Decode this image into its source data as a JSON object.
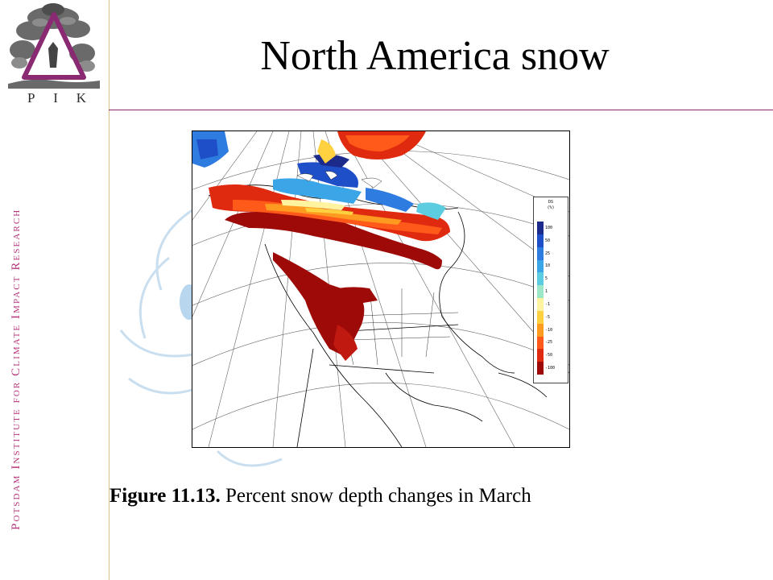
{
  "slide": {
    "title": "North America snow",
    "caption_bold": "Figure 11.13.",
    "caption_text": " Percent snow depth changes in March",
    "side_text": "Potsdam Institute for Climate Impact Research",
    "logo_letters": [
      "P",
      "I",
      "K"
    ]
  },
  "map": {
    "legend_header": [
      "DS",
      "(%)"
    ],
    "legend_labels": [
      "100",
      "50",
      "25",
      "10",
      "5",
      "1",
      "-1",
      "-5",
      "-10",
      "-25",
      "-50",
      "-100"
    ],
    "legend_colors": [
      "#1c2a8c",
      "#1f4fc8",
      "#2f7ce0",
      "#3aa6e8",
      "#5ccde0",
      "#9de6c8",
      "#fff3a0",
      "#ffd040",
      "#ff9a20",
      "#ff5a1a",
      "#e02a10",
      "#9e0a08"
    ]
  },
  "colors": {
    "accent": "#8a2a72",
    "side_text": "#b5357a",
    "rule": "#d8c08a"
  }
}
